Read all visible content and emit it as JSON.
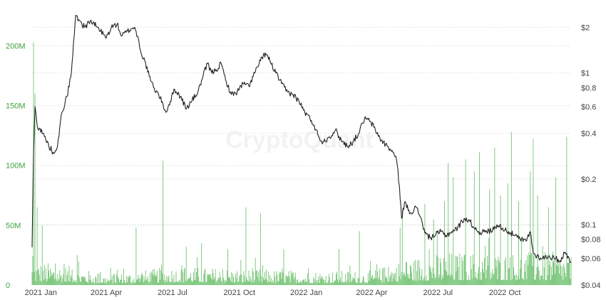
{
  "watermark": "CryptoQuant",
  "chart_data": {
    "type": "bar+line",
    "x_axis": {
      "start": "2020-12-20",
      "end": "2022-12-31",
      "ticks": [
        {
          "date": "2021-01-01",
          "label": "2021 Jan"
        },
        {
          "date": "2021-04-01",
          "label": "2021 Apr"
        },
        {
          "date": "2021-07-01",
          "label": "2021 Jul"
        },
        {
          "date": "2021-10-01",
          "label": "2021 Oct"
        },
        {
          "date": "2022-01-01",
          "label": "2022 Jan"
        },
        {
          "date": "2022-04-01",
          "label": "2022 Apr"
        },
        {
          "date": "2022-07-01",
          "label": "2022 Jul"
        },
        {
          "date": "2022-10-01",
          "label": "2022 Oct"
        }
      ]
    },
    "y_left": {
      "min": 0,
      "max": 230000000,
      "scale": "linear",
      "color": "#3fa33f",
      "ticks": [
        {
          "value": 0,
          "label": "0"
        },
        {
          "value": 50000000,
          "label": "50M"
        },
        {
          "value": 100000000,
          "label": "100M"
        },
        {
          "value": 150000000,
          "label": "150M"
        },
        {
          "value": 200000000,
          "label": "200M"
        }
      ]
    },
    "y_right": {
      "min": 0.04,
      "max": 2.6,
      "scale": "log",
      "ticks": [
        {
          "value": 0.04,
          "label": "$0.04"
        },
        {
          "value": 0.06,
          "label": "$0.06"
        },
        {
          "value": 0.08,
          "label": "$0.08"
        },
        {
          "value": 0.1,
          "label": "$0.1"
        },
        {
          "value": 0.2,
          "label": "$0.2"
        },
        {
          "value": 0.4,
          "label": "$0.4"
        },
        {
          "value": 0.6,
          "label": "$0.6"
        },
        {
          "value": 0.8,
          "label": "$0.8"
        },
        {
          "value": 1,
          "label": "$1"
        },
        {
          "value": 2,
          "label": "$2"
        }
      ]
    },
    "grid": true,
    "legend": "none",
    "series": [
      {
        "type": "bar",
        "axis": "left",
        "color": "#5cb85c",
        "baseline": [
          [
            "2020-12-20",
            12000000
          ],
          [
            "2021-02-01",
            10000000
          ],
          [
            "2021-04-01",
            5000000
          ],
          [
            "2021-07-01",
            9000000
          ],
          [
            "2021-10-01",
            8000000
          ],
          [
            "2022-01-01",
            7000000
          ],
          [
            "2022-04-01",
            7000000
          ],
          [
            "2022-05-10",
            12000000
          ],
          [
            "2022-07-01",
            16000000
          ],
          [
            "2022-10-01",
            16000000
          ],
          [
            "2022-12-31",
            16000000
          ]
        ],
        "spikes": [
          [
            "2020-12-22",
            203000000
          ],
          [
            "2020-12-24",
            160000000
          ],
          [
            "2020-12-27",
            65000000
          ],
          [
            "2021-01-03",
            50000000
          ],
          [
            "2021-02-20",
            25000000
          ],
          [
            "2021-05-12",
            48000000
          ],
          [
            "2021-06-18",
            104000000
          ],
          [
            "2021-07-20",
            32000000
          ],
          [
            "2021-08-10",
            35000000
          ],
          [
            "2021-09-15",
            30000000
          ],
          [
            "2021-10-10",
            65000000
          ],
          [
            "2021-10-30",
            60000000
          ],
          [
            "2021-12-01",
            30000000
          ],
          [
            "2022-02-15",
            30000000
          ],
          [
            "2022-03-15",
            45000000
          ],
          [
            "2022-05-10",
            48000000
          ],
          [
            "2022-05-13",
            63000000
          ],
          [
            "2022-06-13",
            68000000
          ],
          [
            "2022-06-25",
            55000000
          ],
          [
            "2022-07-10",
            70000000
          ],
          [
            "2022-07-15",
            102000000
          ],
          [
            "2022-07-22",
            90000000
          ],
          [
            "2022-08-08",
            105000000
          ],
          [
            "2022-08-20",
            95000000
          ],
          [
            "2022-08-27",
            111000000
          ],
          [
            "2022-09-10",
            80000000
          ],
          [
            "2022-09-17",
            115000000
          ],
          [
            "2022-09-25",
            75000000
          ],
          [
            "2022-10-05",
            85000000
          ],
          [
            "2022-10-10",
            128000000
          ],
          [
            "2022-10-20",
            70000000
          ],
          [
            "2022-11-05",
            95000000
          ],
          [
            "2022-11-09",
            122000000
          ],
          [
            "2022-11-15",
            75000000
          ],
          [
            "2022-11-30",
            65000000
          ],
          [
            "2022-12-10",
            90000000
          ],
          [
            "2022-12-25",
            124000000
          ]
        ]
      },
      {
        "type": "line",
        "axis": "right",
        "color": "#222222",
        "points": [
          [
            "2020-12-20",
            0.071
          ],
          [
            "2020-12-22",
            0.3
          ],
          [
            "2020-12-24",
            0.6
          ],
          [
            "2020-12-27",
            0.45
          ],
          [
            "2021-01-04",
            0.4
          ],
          [
            "2021-01-12",
            0.33
          ],
          [
            "2021-01-18",
            0.3
          ],
          [
            "2021-01-24",
            0.33
          ],
          [
            "2021-01-30",
            0.55
          ],
          [
            "2021-02-06",
            0.7
          ],
          [
            "2021-02-12",
            1.0
          ],
          [
            "2021-02-18",
            2.4
          ],
          [
            "2021-02-24",
            2.2
          ],
          [
            "2021-03-02",
            2.0
          ],
          [
            "2021-03-10",
            2.2
          ],
          [
            "2021-03-20",
            2.0
          ],
          [
            "2021-04-01",
            1.7
          ],
          [
            "2021-04-08",
            2.0
          ],
          [
            "2021-04-16",
            2.1
          ],
          [
            "2021-04-22",
            1.75
          ],
          [
            "2021-04-28",
            1.85
          ],
          [
            "2021-05-05",
            1.95
          ],
          [
            "2021-05-10",
            2.0
          ],
          [
            "2021-05-16",
            1.6
          ],
          [
            "2021-05-20",
            1.3
          ],
          [
            "2021-05-24",
            1.2
          ],
          [
            "2021-05-30",
            0.95
          ],
          [
            "2021-06-05",
            0.8
          ],
          [
            "2021-06-12",
            0.72
          ],
          [
            "2021-06-18",
            0.62
          ],
          [
            "2021-06-22",
            0.55
          ],
          [
            "2021-06-28",
            0.65
          ],
          [
            "2021-07-04",
            0.78
          ],
          [
            "2021-07-12",
            0.7
          ],
          [
            "2021-07-20",
            0.58
          ],
          [
            "2021-07-28",
            0.66
          ],
          [
            "2021-08-05",
            0.75
          ],
          [
            "2021-08-12",
            0.95
          ],
          [
            "2021-08-18",
            1.15
          ],
          [
            "2021-08-24",
            1.0
          ],
          [
            "2021-08-30",
            1.05
          ],
          [
            "2021-09-06",
            1.15
          ],
          [
            "2021-09-12",
            0.9
          ],
          [
            "2021-09-20",
            0.72
          ],
          [
            "2021-09-28",
            0.75
          ],
          [
            "2021-10-06",
            0.85
          ],
          [
            "2021-10-14",
            0.82
          ],
          [
            "2021-10-22",
            1.0
          ],
          [
            "2021-10-30",
            1.2
          ],
          [
            "2021-11-06",
            1.35
          ],
          [
            "2021-11-12",
            1.2
          ],
          [
            "2021-11-20",
            1.0
          ],
          [
            "2021-11-28",
            0.85
          ],
          [
            "2021-12-06",
            0.75
          ],
          [
            "2021-12-14",
            0.72
          ],
          [
            "2021-12-22",
            0.65
          ],
          [
            "2021-12-30",
            0.55
          ],
          [
            "2022-01-06",
            0.5
          ],
          [
            "2022-01-12",
            0.45
          ],
          [
            "2022-01-18",
            0.38
          ],
          [
            "2022-01-24",
            0.35
          ],
          [
            "2022-02-02",
            0.38
          ],
          [
            "2022-02-10",
            0.42
          ],
          [
            "2022-02-18",
            0.36
          ],
          [
            "2022-02-26",
            0.33
          ],
          [
            "2022-03-06",
            0.35
          ],
          [
            "2022-03-14",
            0.4
          ],
          [
            "2022-03-22",
            0.5
          ],
          [
            "2022-03-30",
            0.48
          ],
          [
            "2022-04-06",
            0.42
          ],
          [
            "2022-04-14",
            0.36
          ],
          [
            "2022-04-22",
            0.33
          ],
          [
            "2022-04-30",
            0.3
          ],
          [
            "2022-05-05",
            0.27
          ],
          [
            "2022-05-09",
            0.18
          ],
          [
            "2022-05-12",
            0.11
          ],
          [
            "2022-05-16",
            0.14
          ],
          [
            "2022-05-24",
            0.12
          ],
          [
            "2022-06-01",
            0.13
          ],
          [
            "2022-06-08",
            0.11
          ],
          [
            "2022-06-13",
            0.088
          ],
          [
            "2022-06-20",
            0.082
          ],
          [
            "2022-06-28",
            0.086
          ],
          [
            "2022-07-05",
            0.09
          ],
          [
            "2022-07-12",
            0.085
          ],
          [
            "2022-07-20",
            0.09
          ],
          [
            "2022-07-28",
            0.095
          ],
          [
            "2022-08-06",
            0.11
          ],
          [
            "2022-08-14",
            0.105
          ],
          [
            "2022-08-20",
            0.095
          ],
          [
            "2022-08-28",
            0.089
          ],
          [
            "2022-09-06",
            0.09
          ],
          [
            "2022-09-14",
            0.092
          ],
          [
            "2022-09-20",
            0.1
          ],
          [
            "2022-09-28",
            0.095
          ],
          [
            "2022-10-06",
            0.09
          ],
          [
            "2022-10-14",
            0.085
          ],
          [
            "2022-10-22",
            0.08
          ],
          [
            "2022-10-30",
            0.078
          ],
          [
            "2022-11-05",
            0.09
          ],
          [
            "2022-11-09",
            0.065
          ],
          [
            "2022-11-14",
            0.062
          ],
          [
            "2022-11-22",
            0.06
          ],
          [
            "2022-11-30",
            0.062
          ],
          [
            "2022-12-08",
            0.06
          ],
          [
            "2022-12-16",
            0.058
          ],
          [
            "2022-12-22",
            0.065
          ],
          [
            "2022-12-27",
            0.062
          ],
          [
            "2022-12-31",
            0.057
          ]
        ]
      }
    ]
  }
}
